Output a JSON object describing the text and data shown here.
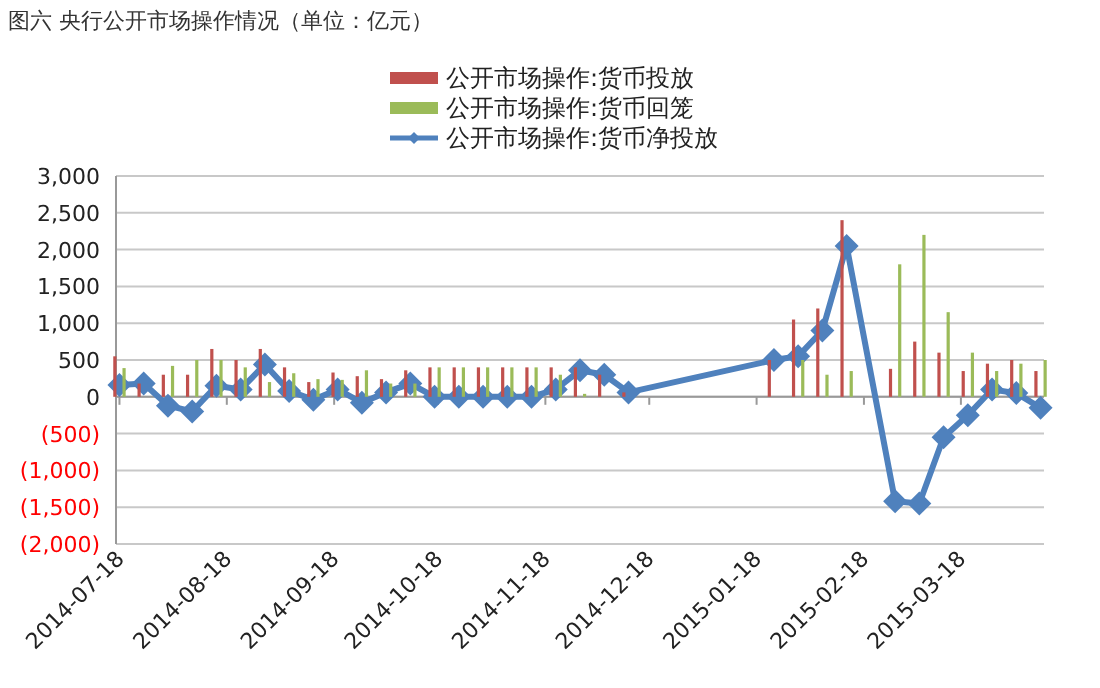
{
  "chart_data": {
    "type": "bar",
    "title": "图六  央行公开市场操作情况（单位：亿元）",
    "x": [
      "2014-07-18",
      "2014-07-25",
      "2014-08-01",
      "2014-08-08",
      "2014-08-15",
      "2014-08-22",
      "2014-08-29",
      "2014-09-05",
      "2014-09-12",
      "2014-09-19",
      "2014-09-26",
      "2014-10-03",
      "2014-10-10",
      "2014-10-17",
      "2014-10-24",
      "2014-10-31",
      "2014-11-07",
      "2014-11-14",
      "2014-11-21",
      "2014-11-28",
      "2014-12-05",
      "2014-12-12",
      "2015-01-23",
      "2015-01-30",
      "2015-02-06",
      "2015-02-13",
      "2015-02-27",
      "2015-03-06",
      "2015-03-13",
      "2015-03-20",
      "2015-03-27",
      "2015-04-03",
      "2015-04-10"
    ],
    "series": [
      {
        "name": "公开市场操作:货币投放",
        "color": "#c0504d",
        "values": [
          550,
          180,
          300,
          300,
          650,
          500,
          650,
          400,
          200,
          330,
          280,
          240,
          360,
          400,
          400,
          400,
          400,
          400,
          400,
          400,
          300,
          60,
          500,
          1050,
          1200,
          2400,
          380,
          750,
          600,
          350,
          450,
          500,
          350
        ]
      },
      {
        "name": "公开市场操作:货币回笼",
        "color": "#9bbb59",
        "values": [
          390,
          0,
          420,
          500,
          500,
          400,
          200,
          320,
          240,
          230,
          360,
          180,
          180,
          400,
          400,
          400,
          400,
          400,
          300,
          40,
          0,
          0,
          0,
          500,
          300,
          350,
          1800,
          2200,
          1150,
          600,
          350,
          450,
          500
        ]
      },
      {
        "name": "公开市场操作:货币净投放",
        "type": "line",
        "color": "#4f81bd",
        "marker": "diamond",
        "values": [
          160,
          180,
          -120,
          -200,
          150,
          100,
          440,
          80,
          -40,
          100,
          -80,
          60,
          180,
          0,
          0,
          0,
          0,
          0,
          100,
          360,
          300,
          60,
          500,
          550,
          900,
          2050,
          -1420,
          -1450,
          -550,
          -250,
          100,
          50,
          -150
        ]
      }
    ],
    "xlim": [
      "2014-07-17",
      "2015-04-11"
    ],
    "xticks": [
      "2014-07-18",
      "2014-08-18",
      "2014-09-18",
      "2014-10-18",
      "2014-11-18",
      "2014-12-18",
      "2015-01-18",
      "2015-02-18",
      "2015-03-18"
    ],
    "ylim": [
      -2000,
      3000
    ],
    "yticks": [
      {
        "value": -2000,
        "label": "(2,000)"
      },
      {
        "value": -1500,
        "label": "(1,500)"
      },
      {
        "value": -1000,
        "label": "(1,000)"
      },
      {
        "value": -500,
        "label": "(500)"
      },
      {
        "value": 0,
        "label": "0"
      },
      {
        "value": 500,
        "label": "500"
      },
      {
        "value": 1000,
        "label": "1,000"
      },
      {
        "value": 1500,
        "label": "1,500"
      },
      {
        "value": 2000,
        "label": "2,000"
      },
      {
        "value": 2500,
        "label": "2,500"
      },
      {
        "value": 3000,
        "label": "3,000"
      }
    ],
    "grid": "y",
    "legend": "top"
  }
}
